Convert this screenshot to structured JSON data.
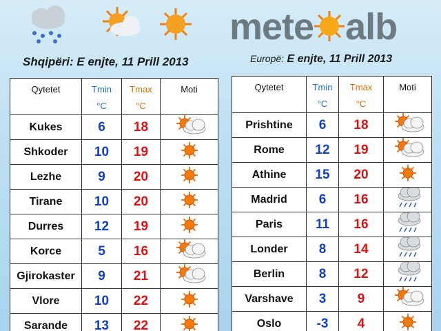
{
  "header": {
    "logo": [
      "mete",
      "alb"
    ]
  },
  "left": {
    "region": "Shqipëri:",
    "date": "E enjte, 11 Prill 2013",
    "columns": [
      {
        "text": "Qytetet"
      },
      {
        "text": "Tmin",
        "unit": "°C"
      },
      {
        "text": "Tmax",
        "unit": "°C"
      },
      {
        "text": "Moti"
      }
    ],
    "rows": [
      {
        "city": "Kukes",
        "tmin": "6",
        "tmax": "18",
        "icon": "partly-cloudy"
      },
      {
        "city": "Shkoder",
        "tmin": "10",
        "tmax": "19",
        "icon": "sun"
      },
      {
        "city": "Lezhe",
        "tmin": "9",
        "tmax": "20",
        "icon": "sun"
      },
      {
        "city": "Tirane",
        "tmin": "10",
        "tmax": "20",
        "icon": "sun"
      },
      {
        "city": "Durres",
        "tmin": "12",
        "tmax": "19",
        "icon": "sun"
      },
      {
        "city": "Korce",
        "tmin": "5",
        "tmax": "16",
        "icon": "partly-cloudy"
      },
      {
        "city": "Gjirokaster",
        "tmin": "9",
        "tmax": "21",
        "icon": "partly-cloudy"
      },
      {
        "city": "Vlore",
        "tmin": "10",
        "tmax": "22",
        "icon": "sun"
      },
      {
        "city": "Sarande",
        "tmin": "13",
        "tmax": "22",
        "icon": "sun"
      }
    ]
  },
  "right": {
    "region": "Europë:",
    "date": "E enjte, 11 Prill 2013",
    "columns": [
      {
        "text": "Qytetet"
      },
      {
        "text": "Tmin",
        "unit": "°C"
      },
      {
        "text": "Tmax",
        "unit": "°C"
      },
      {
        "text": "Moti"
      }
    ],
    "rows": [
      {
        "city": "Prishtine",
        "tmin": "6",
        "tmax": "18",
        "icon": "partly-cloudy"
      },
      {
        "city": "Rome",
        "tmin": "12",
        "tmax": "19",
        "icon": "partly-cloudy"
      },
      {
        "city": "Athine",
        "tmin": "15",
        "tmax": "20",
        "icon": "sun"
      },
      {
        "city": "Madrid",
        "tmin": "6",
        "tmax": "16",
        "icon": "rain"
      },
      {
        "city": "Paris",
        "tmin": "11",
        "tmax": "16",
        "icon": "rain"
      },
      {
        "city": "Londer",
        "tmin": "8",
        "tmax": "14",
        "icon": "rain"
      },
      {
        "city": "Berlin",
        "tmin": "8",
        "tmax": "12",
        "icon": "rain"
      },
      {
        "city": "Varshave",
        "tmin": "3",
        "tmax": "9",
        "icon": "partly-cloudy"
      },
      {
        "city": "Oslo",
        "tmin": "-3",
        "tmax": "4",
        "icon": "sun"
      }
    ]
  }
}
